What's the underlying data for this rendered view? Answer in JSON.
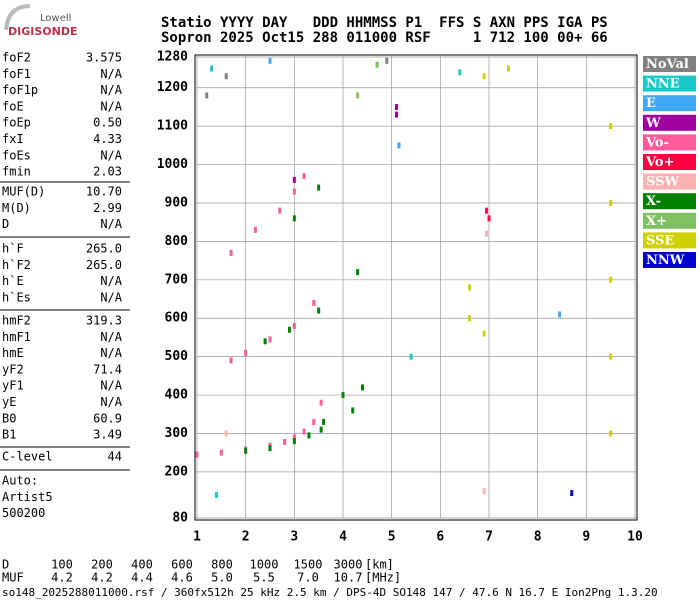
{
  "logo": {
    "top": "Lowell",
    "bottom": "DIGISONDE"
  },
  "header": {
    "row1": "Statio YYYY DAY   DDD HHMMSS P1  FFS S AXN PPS IGA PS",
    "row2": "Sopron 2025 Oct15 288 011000 RSF     1 712 100 00+ 66"
  },
  "params": [
    [
      {
        "label": "foF2",
        "value": "3.575"
      },
      {
        "label": "foF1",
        "value": "N/A"
      },
      {
        "label": "foF1p",
        "value": "N/A"
      },
      {
        "label": "foE",
        "value": "N/A"
      },
      {
        "label": "foEp",
        "value": "0.50"
      },
      {
        "label": "fxI",
        "value": "4.33"
      },
      {
        "label": "foEs",
        "value": "N/A"
      },
      {
        "label": "fmin",
        "value": "2.03"
      }
    ],
    [
      {
        "label": "MUF(D)",
        "value": "10.70"
      },
      {
        "label": "M(D)",
        "value": "2.99"
      },
      {
        "label": "D",
        "value": "N/A"
      }
    ],
    [
      {
        "label": "h`F",
        "value": "265.0"
      },
      {
        "label": "h`F2",
        "value": "265.0"
      },
      {
        "label": "h`E",
        "value": "N/A"
      },
      {
        "label": "h`Es",
        "value": "N/A"
      }
    ],
    [
      {
        "label": "hmF2",
        "value": "319.3"
      },
      {
        "label": "hmF1",
        "value": "N/A"
      },
      {
        "label": "hmE",
        "value": "N/A"
      },
      {
        "label": "yF2",
        "value": "71.4"
      },
      {
        "label": "yF1",
        "value": "N/A"
      },
      {
        "label": "yE",
        "value": "N/A"
      },
      {
        "label": "B0",
        "value": "60.9"
      },
      {
        "label": "B1",
        "value": "3.49"
      }
    ],
    [
      {
        "label": "C-level",
        "value": "44"
      }
    ],
    [
      {
        "label": "Auto:",
        "value": ""
      },
      {
        "label": "Artist5",
        "value": ""
      },
      {
        "label": "500200",
        "value": ""
      }
    ]
  ],
  "chart_data": {
    "type": "scatter",
    "xlim": [
      1,
      10
    ],
    "xticks": [
      1,
      2,
      3,
      4,
      5,
      6,
      7,
      8,
      9,
      10
    ],
    "ylim": [
      80,
      1280
    ],
    "yticks": [
      80,
      200,
      300,
      400,
      500,
      600,
      700,
      800,
      900,
      1000,
      1100,
      1200,
      1280
    ],
    "grid": true,
    "series": [
      {
        "name": "NoVal",
        "color": "#808080",
        "x": [
          1.2,
          1.6,
          4.9
        ],
        "values": [
          1180,
          1230,
          1270
        ]
      },
      {
        "name": "NNE",
        "color": "#19c8c8",
        "x": [
          1.3,
          1.4,
          5.4,
          6.4
        ],
        "values": [
          1250,
          140,
          500,
          1240
        ]
      },
      {
        "name": "E",
        "color": "#40a8f0",
        "x": [
          5.15,
          8.45,
          2.5
        ],
        "values": [
          1050,
          610,
          1270
        ]
      },
      {
        "name": "W",
        "color": "#a000a0",
        "x": [
          5.1,
          5.1,
          3.0
        ],
        "values": [
          1150,
          1130,
          960
        ]
      },
      {
        "name": "Vo-",
        "color": "#ff5a9c",
        "x": [
          1.0,
          1.5,
          2.0,
          2.5,
          2.8,
          3.0,
          3.2,
          3.4,
          3.55,
          1.7,
          2.0,
          2.5,
          3.0,
          3.4,
          1.7,
          2.2,
          2.7,
          3.0,
          3.2
        ],
        "values": [
          245,
          250,
          258,
          268,
          278,
          290,
          305,
          330,
          380,
          490,
          510,
          545,
          580,
          640,
          770,
          830,
          880,
          930,
          970
        ]
      },
      {
        "name": "Vo+",
        "color": "#ff0040",
        "x": [
          6.95,
          7.0
        ],
        "values": [
          880,
          860
        ]
      },
      {
        "name": "SSW",
        "color": "#ffb0b0",
        "x": [
          6.95,
          1.6,
          6.9
        ],
        "values": [
          820,
          300,
          150
        ]
      },
      {
        "name": "X-",
        "color": "#008000",
        "x": [
          2.0,
          2.5,
          3.0,
          3.3,
          3.55,
          3.6,
          2.4,
          2.9,
          3.5,
          3.0,
          3.5,
          4.0,
          4.2,
          4.4,
          4.3
        ],
        "values": [
          255,
          262,
          280,
          295,
          310,
          330,
          540,
          570,
          620,
          860,
          940,
          400,
          360,
          420,
          720
        ]
      },
      {
        "name": "X+",
        "color": "#80c060",
        "x": [
          4.3,
          4.7
        ],
        "values": [
          1180,
          1260
        ]
      },
      {
        "name": "SSE",
        "color": "#d0d000",
        "x": [
          9.5,
          9.5,
          9.5,
          9.5,
          9.5,
          6.6,
          6.6,
          6.9,
          6.9,
          7.4
        ],
        "values": [
          300,
          500,
          700,
          900,
          1100,
          600,
          680,
          560,
          1230,
          1250
        ]
      },
      {
        "name": "NNW",
        "color": "#0000d0",
        "x": [
          8.7
        ],
        "values": [
          145
        ]
      }
    ]
  },
  "bottom": {
    "D": {
      "label": "D",
      "values": [
        "100",
        "200",
        "400",
        "600",
        "800",
        "1000",
        "1500",
        "3000"
      ],
      "unit": "[km]"
    },
    "MUF": {
      "label": "MUF",
      "values": [
        "4.2",
        "4.2",
        "4.4",
        "4.6",
        "5.0",
        "5.5",
        "7.0",
        "10.7"
      ],
      "unit": "[MHz]"
    }
  },
  "footer": "so148_2025288011000.rsf / 360fx512h 25 kHz 2.5 km / DPS-4D SO148 147 / 47.6 N 16.7 E Ion2Png 1.3.20"
}
